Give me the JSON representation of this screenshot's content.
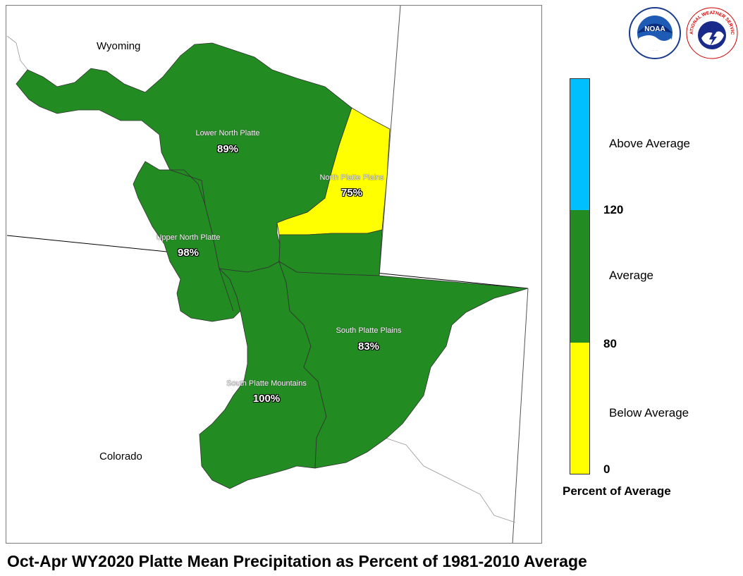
{
  "states": {
    "wyoming": "Wyoming",
    "colorado": "Colorado"
  },
  "basins": [
    {
      "name": "Lower North Platte",
      "percent": "89%",
      "category": "Average"
    },
    {
      "name": "North Platte Plains",
      "percent": "75%",
      "category": "Below Average"
    },
    {
      "name": "Upper North Platte",
      "percent": "98%",
      "category": "Average"
    },
    {
      "name": "South Platte Plains",
      "percent": "83%",
      "category": "Average"
    },
    {
      "name": "South Platte Mountains",
      "percent": "100%",
      "category": "Average"
    }
  ],
  "legend": {
    "title": "Percent of Average",
    "categories": [
      {
        "label": "Above Average",
        "color": "#00bfff"
      },
      {
        "label": "Average",
        "color": "#228b22"
      },
      {
        "label": "Below Average",
        "color": "#ffff00"
      }
    ],
    "ticks": [
      "120",
      "80",
      "0"
    ]
  },
  "logos": [
    {
      "name": "NOAA",
      "icon": "noaa-logo-icon"
    },
    {
      "name": "NATIONAL WEATHER SERVICE",
      "icon": "nws-logo-icon"
    }
  ],
  "caption": "Oct-Apr WY2020 Platte Mean Precipitation as Percent of 1981-2010 Average"
}
